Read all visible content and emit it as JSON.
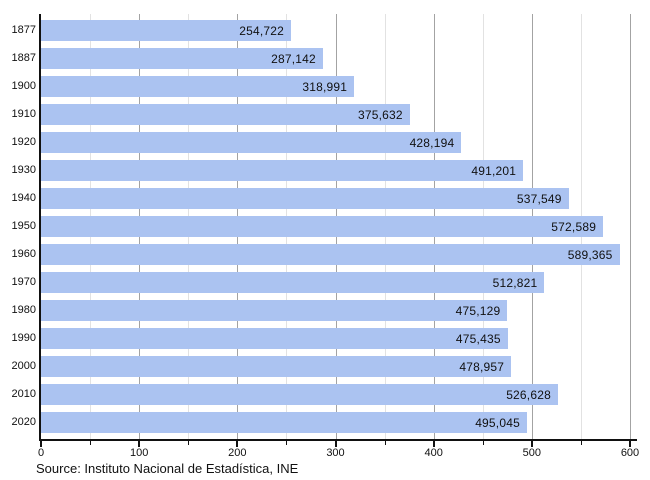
{
  "chart_data": {
    "type": "bar",
    "orientation": "horizontal",
    "title": "",
    "xlabel": "",
    "ylabel": "",
    "categories": [
      "1877",
      "1887",
      "1900",
      "1910",
      "1920",
      "1930",
      "1940",
      "1950",
      "1960",
      "1970",
      "1980",
      "1990",
      "2000",
      "2010",
      "2020"
    ],
    "values": [
      254722,
      287142,
      318991,
      375632,
      428194,
      491201,
      537549,
      572589,
      589365,
      512821,
      475129,
      475435,
      478957,
      526628,
      495045
    ],
    "value_labels": [
      "254,722",
      "287,142",
      "318,991",
      "375,632",
      "428,194",
      "491,201",
      "537,549",
      "572,589",
      "589,365",
      "512,821",
      "475,129",
      "475,435",
      "478,957",
      "526,628",
      "495,045"
    ],
    "xlim": [
      0,
      600
    ],
    "x_major_ticks": [
      0,
      100,
      200,
      300,
      400,
      500,
      600
    ],
    "x_major_tick_labels": [
      "0",
      "100",
      "200",
      "300",
      "400",
      "500",
      "600"
    ],
    "x_minor_ticks": [
      50,
      150,
      250,
      350,
      450,
      550
    ],
    "grid": "vertical major and minor gridlines",
    "legend": "none",
    "bar_value_scale_note": "axis in thousands"
  },
  "colors": {
    "bar_fill": "#abc3f1",
    "gridline_major": "#a3a3a3",
    "gridline_minor": "#e2e2e2",
    "axis": "#111111",
    "text": "#111111",
    "background": "#ffffff"
  },
  "source_note": "Source: Instituto Nacional de Estadística, INE"
}
